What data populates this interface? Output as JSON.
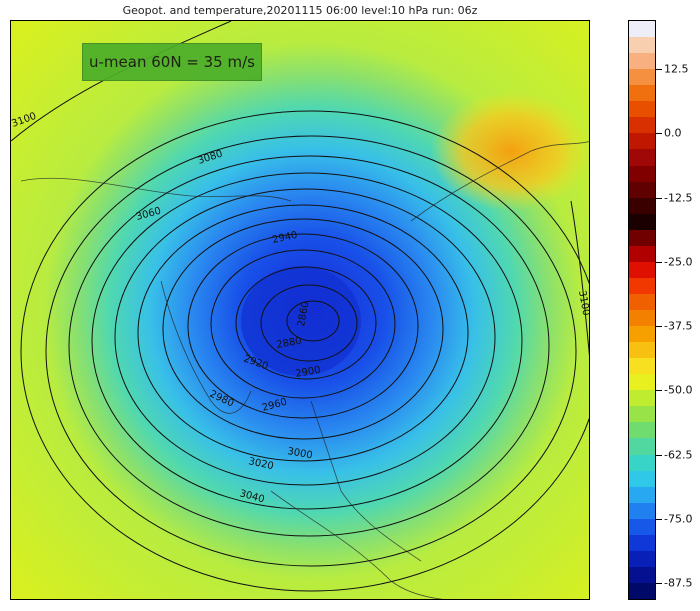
{
  "title": "Geopot. and temperature,20201115 06:00 level:10 hPa run: 06z",
  "umean_box": {
    "text": "u-mean 60N = 35 m/s"
  },
  "contour_labels": [
    "3100",
    "3080",
    "3060",
    "3040",
    "3020",
    "3000",
    "2980",
    "2960",
    "2940",
    "2920",
    "2900",
    "2880",
    "2860",
    "3100"
  ],
  "colorbar": {
    "ticks": [
      "12.5",
      "0.0",
      "-12.5",
      "-25.0",
      "-37.5",
      "-50.0",
      "-62.5",
      "-75.0",
      "-87.5"
    ],
    "colors": [
      "#edeef8",
      "#f8d0b0",
      "#f8b080",
      "#f59040",
      "#f07010",
      "#e85000",
      "#d83000",
      "#c01800",
      "#a00808",
      "#800000",
      "#600000",
      "#3a0000",
      "#1a0000",
      "#700000",
      "#b00000",
      "#e01000",
      "#f03800",
      "#f06000",
      "#f48000",
      "#f6a000",
      "#f8c010",
      "#f6e020",
      "#e8f020",
      "#c0ec30",
      "#98e448",
      "#70dc70",
      "#50d8a0",
      "#38d4c8",
      "#30c8e8",
      "#28a8f0",
      "#2080f0",
      "#1858e8",
      "#1038d8",
      "#0820b8",
      "#041090",
      "#000868"
    ]
  }
}
